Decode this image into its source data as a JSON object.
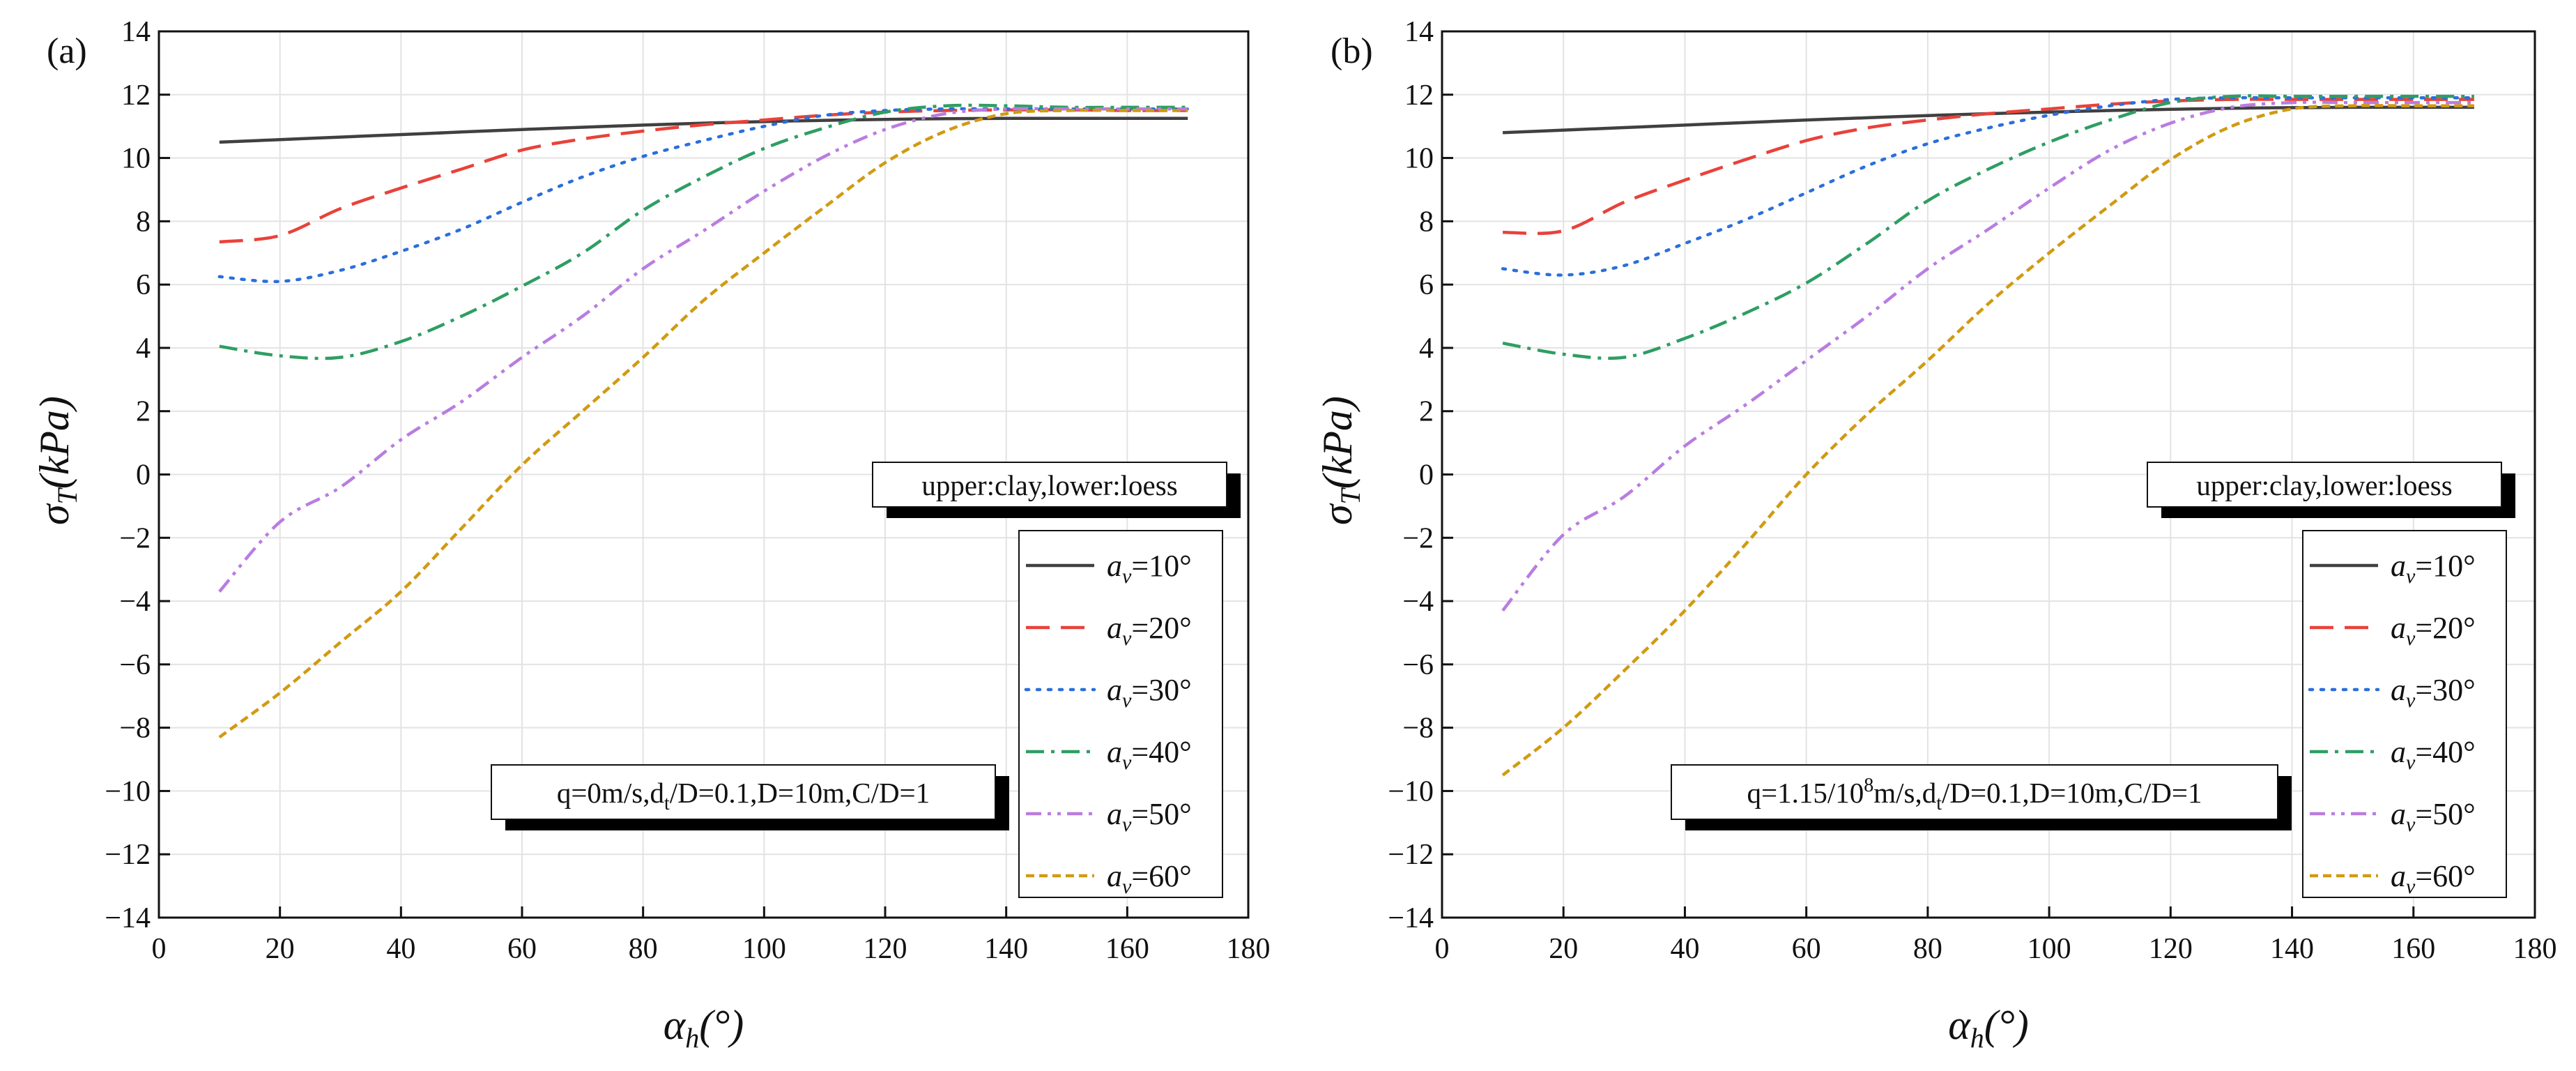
{
  "figure": {
    "description_free": true
  },
  "chart_data": [
    {
      "panel_label": "(a)",
      "type": "line",
      "xlabel_symbol": "α",
      "xlabel_sub": "h",
      "xlabel_unit": "(°)",
      "ylabel_symbol": "σ",
      "ylabel_sub": "T",
      "ylabel_unit": "(kPa)",
      "xlim": [
        0,
        180
      ],
      "ylim": [
        -14,
        14
      ],
      "xticks": [
        0,
        20,
        40,
        60,
        80,
        100,
        120,
        140,
        160,
        180
      ],
      "yticks": [
        -14,
        -12,
        -10,
        -8,
        -6,
        -4,
        -2,
        0,
        2,
        4,
        6,
        8,
        10,
        12,
        14
      ],
      "grid": true,
      "annotation_box": "upper:clay,lower:loess",
      "param_box": {
        "prefix": "q=0m/s",
        "sup": "",
        "suffix": ",d",
        "sub": "t",
        "tail": "/D=0.1,D=10m,C/D=1"
      },
      "legend_position": "bottom-right",
      "x": [
        10,
        20,
        30,
        40,
        50,
        60,
        70,
        80,
        90,
        100,
        110,
        120,
        130,
        140,
        150,
        160,
        170
      ],
      "series": [
        {
          "name": "a",
          "sub": "v",
          "val": "=10°",
          "color": "#404040",
          "dash": "solid",
          "values": [
            10.5,
            10.58,
            10.66,
            10.74,
            10.82,
            10.9,
            10.97,
            11.04,
            11.1,
            11.15,
            11.19,
            11.22,
            11.24,
            11.25,
            11.25,
            11.25,
            11.25
          ]
        },
        {
          "name": "a",
          "sub": "v",
          "val": "=20°",
          "color": "#e8423a",
          "dash": "long",
          "values": [
            7.35,
            7.55,
            8.4,
            9.05,
            9.65,
            10.25,
            10.6,
            10.85,
            11.05,
            11.2,
            11.35,
            11.45,
            11.5,
            11.52,
            11.52,
            11.5,
            11.5
          ]
        },
        {
          "name": "a",
          "sub": "v",
          "val": "=30°",
          "color": "#2a6fdb",
          "dash": "dot",
          "values": [
            6.25,
            6.1,
            6.45,
            7.05,
            7.75,
            8.6,
            9.4,
            10.05,
            10.55,
            11.0,
            11.35,
            11.5,
            11.55,
            11.55,
            11.55,
            11.55,
            11.55
          ]
        },
        {
          "name": "a",
          "sub": "v",
          "val": "=40°",
          "color": "#2e9e63",
          "dash": "dashdot",
          "values": [
            4.05,
            3.75,
            3.7,
            4.2,
            5.0,
            5.95,
            7.0,
            8.35,
            9.4,
            10.3,
            10.95,
            11.45,
            11.65,
            11.65,
            11.6,
            11.6,
            11.6
          ]
        },
        {
          "name": "a",
          "sub": "v",
          "val": "=50°",
          "color": "#b97de0",
          "dash": "dashdotdot",
          "values": [
            -3.7,
            -1.5,
            -0.4,
            1.1,
            2.3,
            3.7,
            5.0,
            6.5,
            7.7,
            8.95,
            10.05,
            10.9,
            11.4,
            11.55,
            11.55,
            11.55,
            11.55
          ]
        },
        {
          "name": "a",
          "sub": "v",
          "val": "=60°",
          "color": "#d19a12",
          "dash": "shortdash",
          "values": [
            -8.3,
            -6.9,
            -5.3,
            -3.7,
            -1.7,
            0.3,
            2.0,
            3.7,
            5.5,
            7.0,
            8.45,
            9.85,
            10.85,
            11.4,
            11.5,
            11.5,
            11.5
          ]
        }
      ]
    },
    {
      "panel_label": "(b)",
      "type": "line",
      "xlabel_symbol": "α",
      "xlabel_sub": "h",
      "xlabel_unit": "(°)",
      "ylabel_symbol": "σ",
      "ylabel_sub": "T",
      "ylabel_unit": "(kPa)",
      "xlim": [
        0,
        180
      ],
      "ylim": [
        -14,
        14
      ],
      "xticks": [
        0,
        20,
        40,
        60,
        80,
        100,
        120,
        140,
        160,
        180
      ],
      "yticks": [
        -14,
        -12,
        -10,
        -8,
        -6,
        -4,
        -2,
        0,
        2,
        4,
        6,
        8,
        10,
        12,
        14
      ],
      "grid": true,
      "annotation_box": "upper:clay,lower:loess",
      "param_box": {
        "prefix": "q=1.15/10",
        "sup": "8",
        "suffix": "m/s,d",
        "sub": "t",
        "tail": "/D=0.1,D=10m,C/D=1"
      },
      "legend_position": "bottom-right",
      "x": [
        10,
        20,
        30,
        40,
        50,
        60,
        70,
        80,
        90,
        100,
        110,
        120,
        130,
        140,
        150,
        160,
        170
      ],
      "series": [
        {
          "name": "a",
          "sub": "v",
          "val": "=10°",
          "color": "#404040",
          "dash": "solid",
          "values": [
            10.8,
            10.88,
            10.96,
            11.04,
            11.12,
            11.2,
            11.27,
            11.34,
            11.4,
            11.45,
            11.5,
            11.54,
            11.57,
            11.59,
            11.6,
            11.6,
            11.6
          ]
        },
        {
          "name": "a",
          "sub": "v",
          "val": "=20°",
          "color": "#e8423a",
          "dash": "long",
          "values": [
            7.65,
            7.7,
            8.6,
            9.3,
            9.95,
            10.55,
            10.95,
            11.2,
            11.4,
            11.55,
            11.7,
            11.8,
            11.85,
            11.85,
            11.85,
            11.85,
            11.85
          ]
        },
        {
          "name": "a",
          "sub": "v",
          "val": "=30°",
          "color": "#2a6fdb",
          "dash": "dot",
          "values": [
            6.5,
            6.3,
            6.6,
            7.3,
            8.05,
            8.9,
            9.75,
            10.45,
            10.95,
            11.35,
            11.65,
            11.85,
            11.9,
            11.9,
            11.9,
            11.9,
            11.9
          ]
        },
        {
          "name": "a",
          "sub": "v",
          "val": "=40°",
          "color": "#2e9e63",
          "dash": "dashdot",
          "values": [
            4.15,
            3.8,
            3.7,
            4.3,
            5.1,
            6.05,
            7.3,
            8.65,
            9.65,
            10.5,
            11.2,
            11.75,
            11.95,
            11.95,
            11.95,
            11.95,
            11.95
          ]
        },
        {
          "name": "a",
          "sub": "v",
          "val": "=50°",
          "color": "#b97de0",
          "dash": "dashdotdot",
          "values": [
            -4.3,
            -1.9,
            -0.7,
            0.9,
            2.2,
            3.6,
            5.0,
            6.5,
            7.75,
            9.05,
            10.25,
            11.1,
            11.6,
            11.75,
            11.75,
            11.75,
            11.75
          ]
        },
        {
          "name": "a",
          "sub": "v",
          "val": "=60°",
          "color": "#d19a12",
          "dash": "shortdash",
          "values": [
            -9.5,
            -8.0,
            -6.2,
            -4.3,
            -2.2,
            0.0,
            1.9,
            3.6,
            5.4,
            7.0,
            8.5,
            9.95,
            11.0,
            11.55,
            11.65,
            11.65,
            11.65
          ]
        }
      ]
    }
  ]
}
